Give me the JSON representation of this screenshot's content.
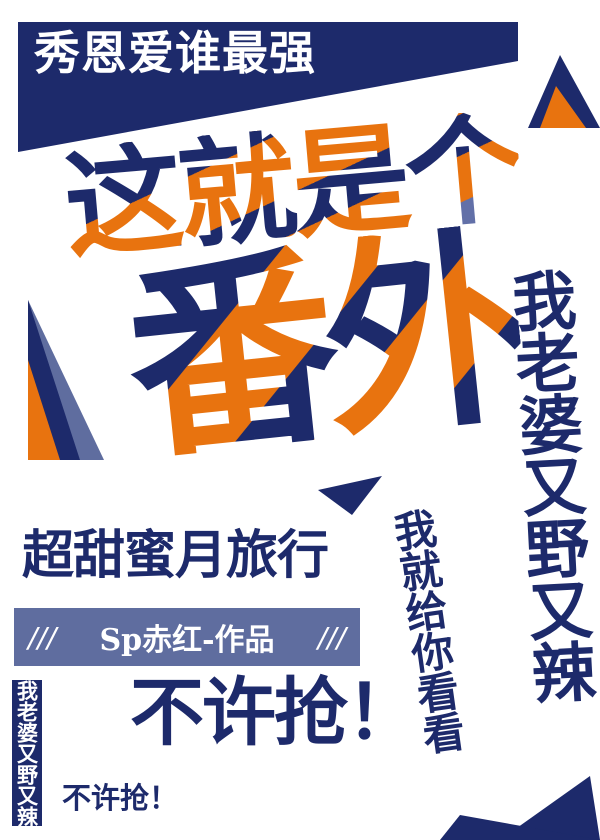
{
  "colors": {
    "navy": "#1d2a6b",
    "orange": "#e8730f",
    "slate": "#5f6d9f",
    "white": "#ffffff"
  },
  "banner": {
    "text": "秀恩爱谁最强"
  },
  "headline": {
    "text": "这就是个"
  },
  "big_title": {
    "text": "番外"
  },
  "vertical_right": {
    "text": "我老婆又野又辣"
  },
  "vertical_middle": {
    "text": "我就给你看看"
  },
  "subtitle": {
    "text": "超甜蜜月旅行"
  },
  "author_bar": {
    "left_slashes": "///",
    "author": "Sp赤红-作品",
    "right_slashes": "///"
  },
  "slogan_big": {
    "text": "不许抢！"
  },
  "vertical_left": {
    "text": "我老婆又野又辣"
  },
  "slogan_small": {
    "text": "不许抢！"
  }
}
